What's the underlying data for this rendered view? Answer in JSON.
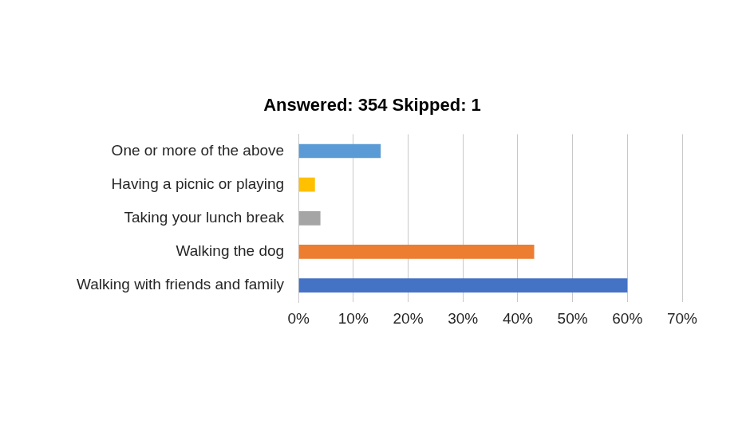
{
  "chart_data": {
    "type": "bar",
    "orientation": "horizontal",
    "title": "Answered: 354 Skipped: 1",
    "categories": [
      "One or more of the above",
      "Having a picnic or playing",
      "Taking your lunch break",
      "Walking the dog",
      "Walking with friends and family"
    ],
    "values": [
      15,
      3,
      4,
      43,
      60
    ],
    "colors": [
      "#5b9bd5",
      "#ffc000",
      "#a5a5a5",
      "#ed7d31",
      "#4472c4"
    ],
    "xlim": [
      0,
      70
    ],
    "xticks": [
      {
        "value": 0,
        "label": "0%"
      },
      {
        "value": 10,
        "label": "10%"
      },
      {
        "value": 20,
        "label": "20%"
      },
      {
        "value": 30,
        "label": "30%"
      },
      {
        "value": 40,
        "label": "40%"
      },
      {
        "value": 50,
        "label": "50%"
      },
      {
        "value": 60,
        "label": "60%"
      },
      {
        "value": 70,
        "label": "70%"
      }
    ],
    "grid": true
  }
}
